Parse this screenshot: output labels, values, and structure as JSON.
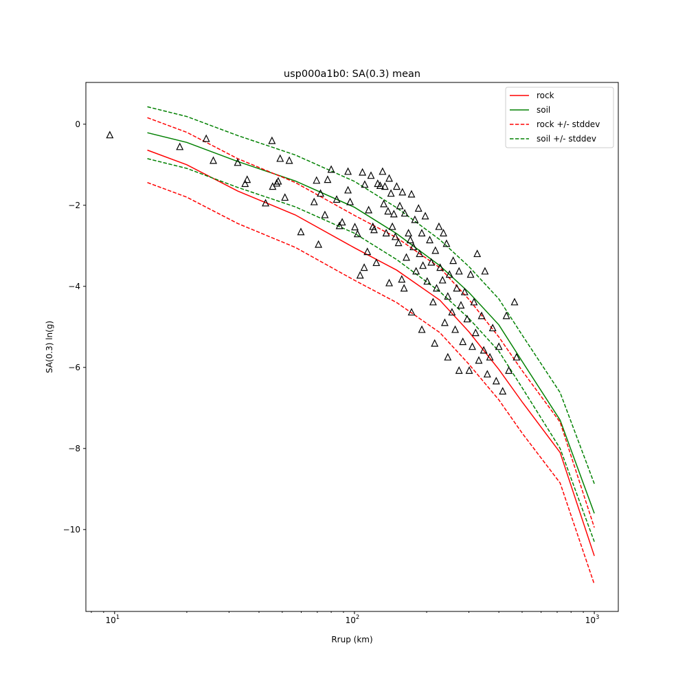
{
  "chart_data": {
    "type": "scatter",
    "title": "usp000a1b0: SA(0.3) mean",
    "xlabel": "Rrup (km)",
    "ylabel": "SA(0.3) ln(g)",
    "xscale": "log",
    "xlim": [
      7.59,
      1259
    ],
    "ylim": [
      -12.02,
      1.03
    ],
    "x_ticks": [
      {
        "value": 10,
        "label": "10",
        "exp": "1"
      },
      {
        "value": 100,
        "label": "10",
        "exp": "2"
      },
      {
        "value": 1000,
        "label": "10",
        "exp": "3"
      }
    ],
    "y_ticks": [
      {
        "value": 0,
        "label": "0"
      },
      {
        "value": -2,
        "label": "−2"
      },
      {
        "value": -4,
        "label": "−4"
      },
      {
        "value": -6,
        "label": "−6"
      },
      {
        "value": -8,
        "label": "−8"
      },
      {
        "value": -10,
        "label": "−10"
      }
    ],
    "legend_position": "top-right",
    "curve_x": [
      13.7,
      20,
      32.6,
      56.7,
      100,
      150,
      227,
      300,
      400,
      500,
      720,
      1000
    ],
    "series": [
      {
        "name": "rock",
        "color": "#ff0000",
        "dash": false,
        "values": [
          -0.64,
          -1.0,
          -1.65,
          -2.24,
          -3.05,
          -3.6,
          -4.34,
          -5.12,
          -6.05,
          -6.85,
          -8.1,
          -10.65
        ]
      },
      {
        "name": "soil",
        "color": "#008000",
        "dash": false,
        "values": [
          -0.21,
          -0.45,
          -0.92,
          -1.4,
          -2.05,
          -2.7,
          -3.49,
          -4.15,
          -4.95,
          -5.85,
          -7.3,
          -9.6
        ]
      },
      {
        "name": "rock +/- stddev",
        "color": "#ff0000",
        "dash": true,
        "values": [
          0.16,
          -0.2,
          -0.85,
          -1.44,
          -2.25,
          -2.8,
          -3.54,
          -4.32,
          -5.25,
          -6.08,
          -7.35,
          -9.95
        ],
        "values_lower": [
          -1.44,
          -1.8,
          -2.45,
          -3.04,
          -3.85,
          -4.4,
          -5.14,
          -5.92,
          -6.8,
          -7.62,
          -8.85,
          -11.35
        ]
      },
      {
        "name": "soil +/- stddev",
        "color": "#008000",
        "dash": true,
        "values": [
          0.43,
          0.19,
          -0.28,
          -0.76,
          -1.41,
          -2.06,
          -2.85,
          -3.51,
          -4.31,
          -5.2,
          -6.62,
          -8.87
        ],
        "values_lower": [
          -0.85,
          -1.09,
          -1.56,
          -2.04,
          -2.69,
          -3.34,
          -4.13,
          -4.79,
          -5.6,
          -6.5,
          -8.0,
          -10.3
        ]
      }
    ],
    "observations": {
      "marker": "triangle-open",
      "color": "#000000",
      "points": [
        [
          9.55,
          -0.27
        ],
        [
          18.7,
          -0.56
        ],
        [
          24.1,
          -0.36
        ],
        [
          25.8,
          -0.9
        ],
        [
          32.6,
          -0.95
        ],
        [
          35.0,
          -1.47
        ],
        [
          35.7,
          -1.37
        ],
        [
          42.6,
          -1.95
        ],
        [
          45.3,
          -0.41
        ],
        [
          45.6,
          -1.54
        ],
        [
          47.4,
          -1.46
        ],
        [
          48.1,
          -1.41
        ],
        [
          49.0,
          -0.85
        ],
        [
          51.3,
          -1.81
        ],
        [
          53.5,
          -0.9
        ],
        [
          59.8,
          -2.66
        ],
        [
          67.9,
          -1.92
        ],
        [
          69.5,
          -1.39
        ],
        [
          70.8,
          -2.97
        ],
        [
          72.2,
          -1.71
        ],
        [
          75.3,
          -2.24
        ],
        [
          77.3,
          -1.37
        ],
        [
          80,
          -1.12
        ],
        [
          84.3,
          -1.86
        ],
        [
          86.6,
          -2.51
        ],
        [
          88.9,
          -2.42
        ],
        [
          94,
          -1.63
        ],
        [
          94,
          -1.17
        ],
        [
          95.9,
          -1.92
        ],
        [
          100.4,
          -2.54
        ],
        [
          103,
          -2.71
        ],
        [
          105.6,
          -3.73
        ],
        [
          108,
          -1.19
        ],
        [
          109.8,
          -3.54
        ],
        [
          110.4,
          -1.49
        ],
        [
          113.2,
          -3.15
        ],
        [
          114.6,
          -2.12
        ],
        [
          117.2,
          -1.27
        ],
        [
          119.3,
          -2.53
        ],
        [
          120.7,
          -2.61
        ],
        [
          123.4,
          -3.42
        ],
        [
          125,
          -1.47
        ],
        [
          128,
          -1.52
        ],
        [
          131,
          -1.17
        ],
        [
          132.5,
          -1.97
        ],
        [
          134,
          -1.54
        ],
        [
          135.6,
          -2.69
        ],
        [
          138,
          -2.15
        ],
        [
          139.6,
          -3.92
        ],
        [
          139.6,
          -1.34
        ],
        [
          142,
          -1.71
        ],
        [
          143.9,
          -2.53
        ],
        [
          146,
          -2.22
        ],
        [
          148,
          -2.78
        ],
        [
          150,
          -1.54
        ],
        [
          152.7,
          -2.93
        ],
        [
          154.6,
          -2.02
        ],
        [
          157.5,
          -3.83
        ],
        [
          158.5,
          -1.68
        ],
        [
          161,
          -4.05
        ],
        [
          162,
          -2.2
        ],
        [
          164.6,
          -3.29
        ],
        [
          168,
          -2.69
        ],
        [
          171,
          -2.86
        ],
        [
          172.9,
          -1.73
        ],
        [
          173,
          -4.64
        ],
        [
          176,
          -3.03
        ],
        [
          178.6,
          -2.36
        ],
        [
          180.7,
          -3.63
        ],
        [
          185,
          -2.08
        ],
        [
          186.9,
          -3.2
        ],
        [
          190.9,
          -2.69
        ],
        [
          191,
          -5.07
        ],
        [
          193,
          -3.49
        ],
        [
          197.4,
          -2.27
        ],
        [
          201,
          -3.88
        ],
        [
          206,
          -2.86
        ],
        [
          209,
          -3.41
        ],
        [
          212.7,
          -4.39
        ],
        [
          216,
          -5.41
        ],
        [
          217.5,
          -3.12
        ],
        [
          220,
          -4.05
        ],
        [
          225,
          -2.53
        ],
        [
          227.6,
          -3.54
        ],
        [
          233,
          -3.85
        ],
        [
          235,
          -2.69
        ],
        [
          238,
          -4.9
        ],
        [
          242,
          -2.95
        ],
        [
          245,
          -4.25
        ],
        [
          245,
          -5.75
        ],
        [
          249,
          -3.71
        ],
        [
          255,
          -4.64
        ],
        [
          258,
          -3.37
        ],
        [
          263,
          -5.07
        ],
        [
          267,
          -4.05
        ],
        [
          273,
          -3.63
        ],
        [
          273,
          -6.08
        ],
        [
          278,
          -4.47
        ],
        [
          283,
          -5.37
        ],
        [
          288,
          -4.14
        ],
        [
          295,
          -4.81
        ],
        [
          301,
          -6.08
        ],
        [
          305,
          -3.71
        ],
        [
          310,
          -5.49
        ],
        [
          315,
          -4.39
        ],
        [
          320,
          -5.15
        ],
        [
          325,
          -3.2
        ],
        [
          330,
          -5.83
        ],
        [
          339,
          -4.73
        ],
        [
          346,
          -5.58
        ],
        [
          350,
          -3.63
        ],
        [
          358,
          -6.17
        ],
        [
          367,
          -5.75
        ],
        [
          377,
          -5.03
        ],
        [
          390,
          -6.34
        ],
        [
          400,
          -5.49
        ],
        [
          415,
          -6.59
        ],
        [
          430,
          -4.73
        ],
        [
          440,
          -6.08
        ],
        [
          465,
          -4.39
        ],
        [
          474,
          -5.75
        ]
      ]
    }
  }
}
